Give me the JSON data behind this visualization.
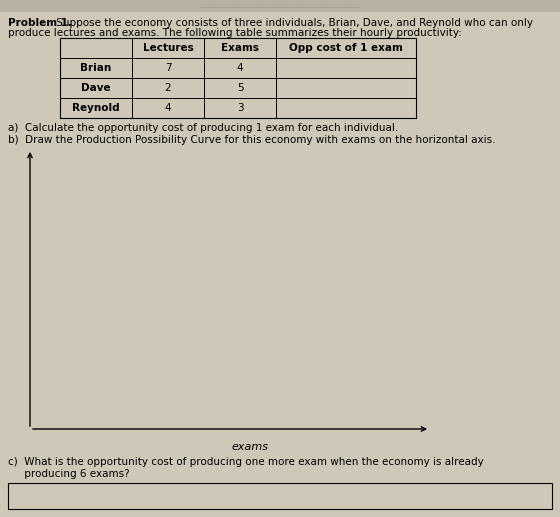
{
  "title_bold": "Problem 1.",
  "title_text": " Suppose the economy consists of three individuals, Brian, Dave, and Reynold who can only\nproduce lectures and exams. The following table summarizes their hourly productivity:",
  "table_headers": [
    "",
    "Lectures",
    "Exams",
    "Opp cost of 1 exam"
  ],
  "table_rows": [
    [
      "Brian",
      "7",
      "4",
      ""
    ],
    [
      "Dave",
      "2",
      "5",
      ""
    ],
    [
      "Reynold",
      "4",
      "3",
      ""
    ]
  ],
  "question_a": "a)  Calculate the opportunity cost of producing 1 exam for each individual.",
  "question_b": "b)  Draw the Production Possibility Curve for this economy with exams on the horizontal axis.",
  "xlabel": "exams",
  "question_c_text": "c)  What is the opportunity cost of producing one more exam when the economy is already\n     producing 6 exams?",
  "bg_color": "#cfc8b8",
  "table_bg": "#cfc8b8",
  "answer_box_color": "#cfc8b8",
  "font_size_main": 7.5,
  "font_size_table": 7.5,
  "top_strip_color": "#b8b0a0"
}
